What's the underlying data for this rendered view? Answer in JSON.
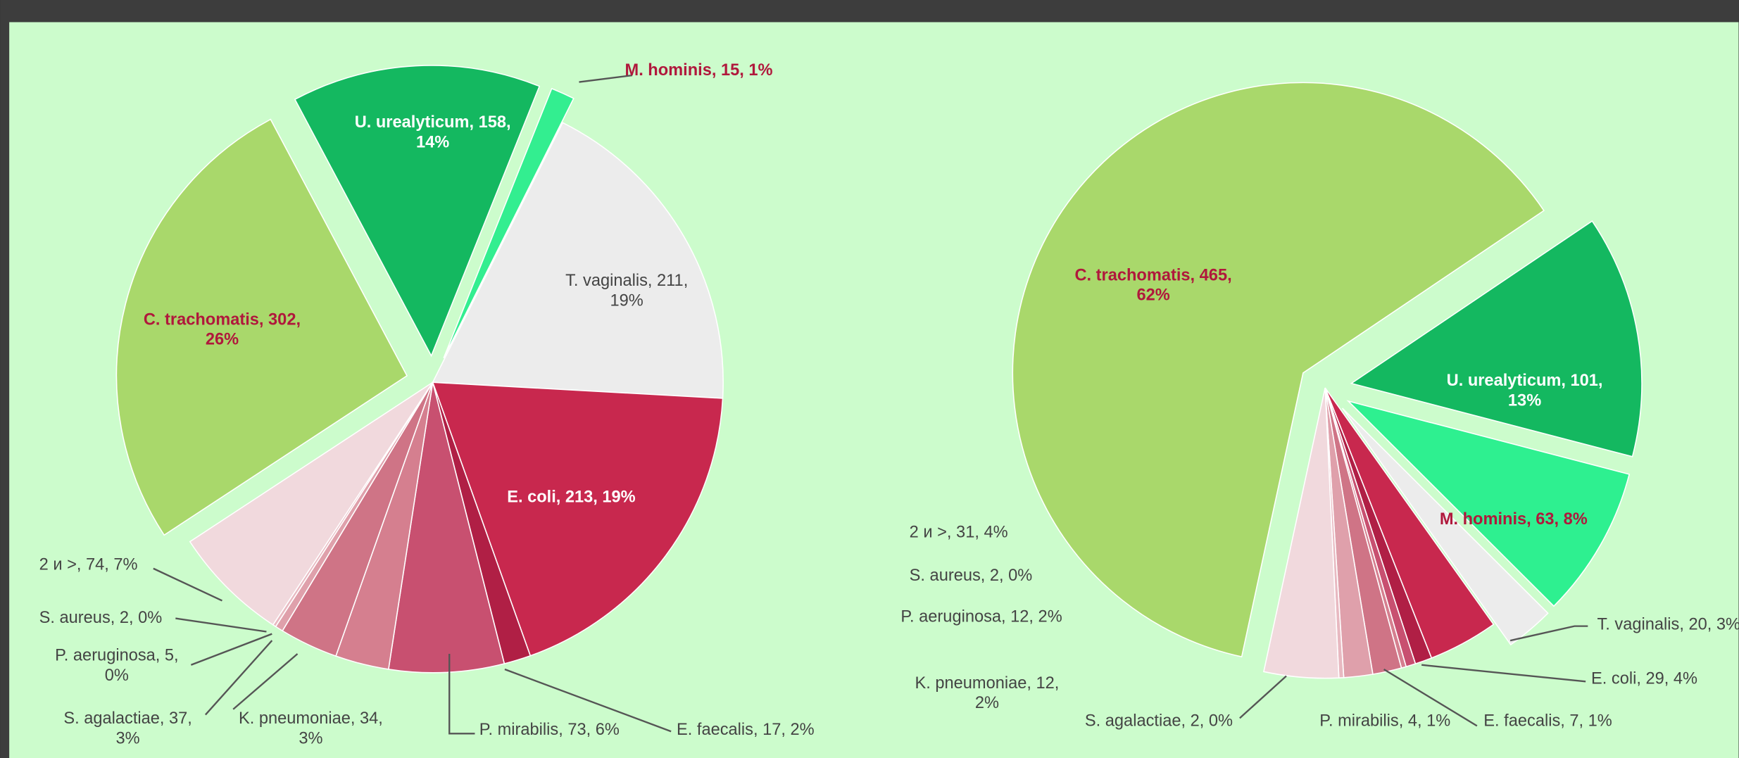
{
  "chart_data": [
    {
      "type": "pie",
      "values": [
        158,
        15,
        211,
        213,
        17,
        73,
        34,
        37,
        5,
        2,
        74,
        302
      ],
      "value_labels": [
        "U. urealyticum, 158, 14%",
        "M. hominis, 15, 1%",
        "T. vaginalis, 211, 19%",
        "E. coli, 213, 19%",
        "E. faecalis, 17, 2%",
        "P. mirabilis, 73, 6%",
        "K. pneumoniae, 34, 3%",
        "S. agalactiae, 37, 3%",
        "P. aeruginosa, 5, 0%",
        "S. aureus, 2, 0%",
        "2 и >, 74, 7%",
        "C. trachomatis, 302, 26%"
      ],
      "colors": [
        "#14b860",
        "#33ee90",
        "#ececec",
        "#c8284e",
        "#b01f45",
        "#c85070",
        "#d57f8f",
        "#cf7486",
        "#dfa0ab",
        "#e8b9c1",
        "#f1d9dd",
        "#a9d86b"
      ],
      "exploded": [
        true,
        true,
        false,
        false,
        false,
        false,
        false,
        false,
        false,
        false,
        false,
        true
      ]
    },
    {
      "type": "pie",
      "values": [
        101,
        63,
        20,
        29,
        7,
        4,
        2,
        12,
        12,
        2,
        31,
        465
      ],
      "value_labels": [
        "U. urealyticum, 101, 13%",
        "M. hominis, 63, 8%",
        "T. vaginalis, 20, 3%",
        "E. coli, 29, 4%",
        "E. faecalis, 7, 1%",
        "P. mirabilis, 4, 1%",
        "S. agalactiae, 2, 0%",
        "K. pneumoniae, 12, 2%",
        "P. aeruginosa, 12, 2%",
        "S. aureus, 2, 0%",
        "2 и >, 31, 4%",
        "C. trachomatis, 465, 62%"
      ],
      "colors": [
        "#14b860",
        "#2ef090",
        "#ececec",
        "#c8284e",
        "#b01f45",
        "#c85070",
        "#d57f8f",
        "#cf7486",
        "#dfa0ab",
        "#e8b9c1",
        "#f1d9dd",
        "#a9d86b"
      ],
      "exploded": [
        true,
        true,
        true,
        false,
        false,
        false,
        false,
        false,
        false,
        false,
        false,
        true
      ]
    }
  ]
}
